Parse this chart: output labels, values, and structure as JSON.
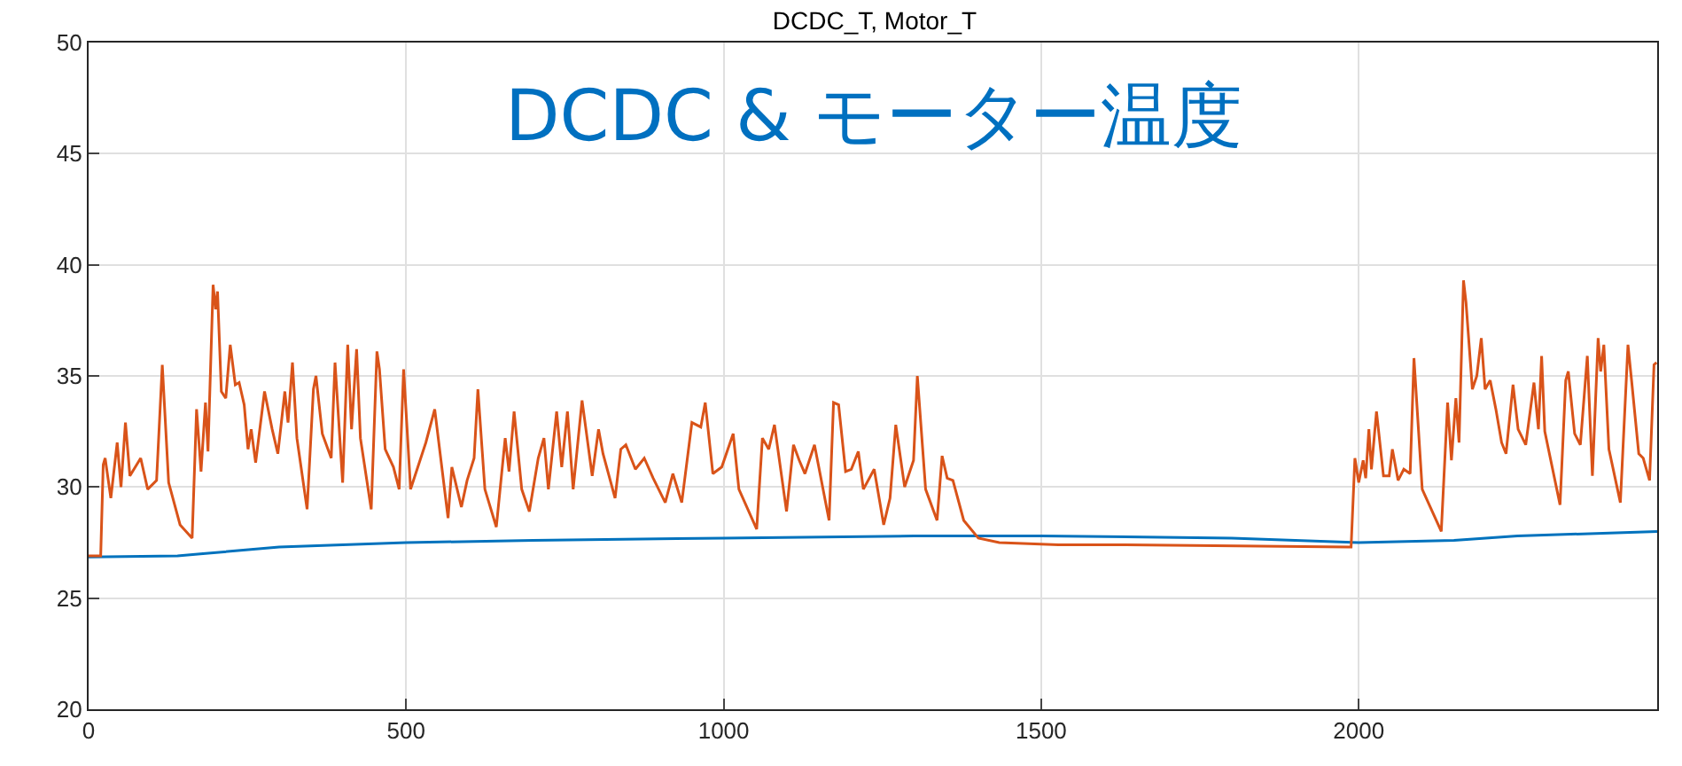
{
  "chart_data": {
    "type": "line",
    "title": "DCDC_T, Motor_T",
    "annotations": [
      "DCDC & モーター温度"
    ],
    "xlim": [
      0,
      2470
    ],
    "xticks": [
      0,
      500,
      1000,
      1500,
      2000
    ],
    "ylim": [
      20,
      50
    ],
    "yticks": [
      20,
      25,
      30,
      35,
      40,
      45,
      50
    ],
    "grid": true,
    "series": [
      {
        "color": "#0072bd",
        "x": [
          0,
          140,
          180,
          300,
          500,
          700,
          1000,
          1300,
          1500,
          1800,
          2000,
          2150,
          2250,
          2470
        ],
        "values": [
          26.85,
          26.9,
          27.0,
          27.3,
          27.5,
          27.6,
          27.7,
          27.8,
          27.8,
          27.7,
          27.5,
          27.6,
          27.8,
          28.0
        ]
      },
      {
        "color": "#d95319",
        "x": [
          0,
          19,
          23,
          26,
          35,
          45,
          51,
          58,
          65,
          82,
          93,
          107,
          116,
          126,
          144,
          163,
          170,
          177,
          184,
          188,
          196,
          200,
          203,
          209,
          216,
          223,
          231,
          237,
          245,
          251,
          256,
          263,
          277,
          289,
          298,
          309,
          314,
          321,
          328,
          344,
          354,
          358,
          368,
          382,
          388,
          400,
          408,
          414,
          422,
          428,
          445,
          454,
          458,
          467,
          480,
          489,
          496,
          507,
          531,
          545,
          566,
          572,
          587,
          596,
          607,
          613,
          624,
          642,
          656,
          662,
          670,
          682,
          694,
          708,
          717,
          724,
          737,
          745,
          754,
          763,
          777,
          793,
          803,
          810,
          829,
          838,
          846,
          861,
          875,
          889,
          908,
          920,
          934,
          950,
          964,
          971,
          983,
          997,
          1015,
          1024,
          1052,
          1061,
          1071,
          1080,
          1099,
          1110,
          1119,
          1128,
          1143,
          1166,
          1173,
          1181,
          1192,
          1201,
          1212,
          1220,
          1237,
          1252,
          1262,
          1271,
          1285,
          1299,
          1305,
          1318,
          1336,
          1344,
          1352,
          1361,
          1378,
          1401,
          1434,
          1527,
          1620,
          1983,
          1988,
          1994,
          2000,
          2007,
          2011,
          2016,
          2020,
          2028,
          2039,
          2048,
          2053,
          2062,
          2071,
          2081,
          2087,
          2100,
          2130,
          2140,
          2146,
          2153,
          2158,
          2165,
          2169,
          2179,
          2186,
          2193,
          2199,
          2207,
          2216,
          2225,
          2232,
          2243,
          2251,
          2263,
          2276,
          2283,
          2288,
          2293,
          2317,
          2326,
          2330,
          2340,
          2349,
          2360,
          2368,
          2377,
          2381,
          2386,
          2394,
          2412,
          2424,
          2430,
          2441,
          2448,
          2458,
          2465,
          2469
        ],
        "values": [
          26.9,
          26.9,
          31.0,
          31.3,
          29.5,
          32.0,
          30.0,
          32.9,
          30.5,
          31.3,
          29.9,
          30.3,
          35.5,
          30.2,
          28.3,
          27.7,
          33.5,
          30.7,
          33.8,
          31.6,
          39.1,
          38.0,
          38.8,
          34.3,
          34.0,
          36.4,
          34.6,
          34.7,
          33.7,
          31.7,
          32.6,
          31.1,
          34.3,
          32.6,
          31.5,
          34.3,
          32.9,
          35.6,
          32.2,
          29.0,
          34.4,
          35.0,
          32.4,
          31.3,
          35.6,
          30.2,
          36.4,
          32.6,
          36.2,
          32.2,
          29.0,
          36.1,
          35.3,
          31.7,
          30.9,
          29.9,
          35.3,
          29.9,
          32.0,
          33.5,
          28.6,
          30.9,
          29.1,
          30.3,
          31.3,
          34.4,
          29.9,
          28.2,
          32.2,
          30.7,
          33.4,
          29.9,
          28.9,
          31.3,
          32.2,
          29.9,
          33.4,
          30.9,
          33.4,
          29.9,
          33.9,
          30.5,
          32.6,
          31.5,
          29.5,
          31.7,
          31.9,
          30.8,
          31.3,
          30.4,
          29.3,
          30.6,
          29.3,
          32.9,
          32.7,
          33.8,
          30.6,
          30.9,
          32.4,
          29.9,
          28.1,
          32.2,
          31.7,
          32.8,
          28.9,
          31.9,
          31.2,
          30.6,
          31.9,
          28.5,
          33.8,
          33.7,
          30.7,
          30.8,
          31.6,
          29.9,
          30.8,
          28.3,
          29.5,
          32.8,
          30.0,
          31.2,
          35.0,
          29.9,
          28.5,
          31.4,
          30.4,
          30.3,
          28.5,
          27.7,
          27.5,
          27.4,
          27.4,
          27.3,
          27.3,
          31.3,
          30.2,
          31.2,
          30.4,
          32.6,
          30.8,
          33.4,
          30.5,
          30.5,
          31.7,
          30.3,
          30.8,
          30.6,
          35.8,
          29.9,
          28.0,
          33.8,
          31.2,
          34.0,
          32.0,
          39.3,
          38.3,
          34.4,
          35.0,
          36.7,
          34.4,
          34.8,
          33.5,
          32.0,
          31.5,
          34.6,
          32.6,
          31.9,
          34.7,
          32.6,
          35.9,
          32.5,
          29.2,
          34.8,
          35.2,
          32.4,
          31.9,
          35.9,
          30.5,
          36.7,
          35.2,
          36.4,
          31.7,
          29.3,
          36.4,
          34.7,
          31.5,
          31.3,
          30.3,
          35.5,
          35.6
        ]
      }
    ]
  }
}
